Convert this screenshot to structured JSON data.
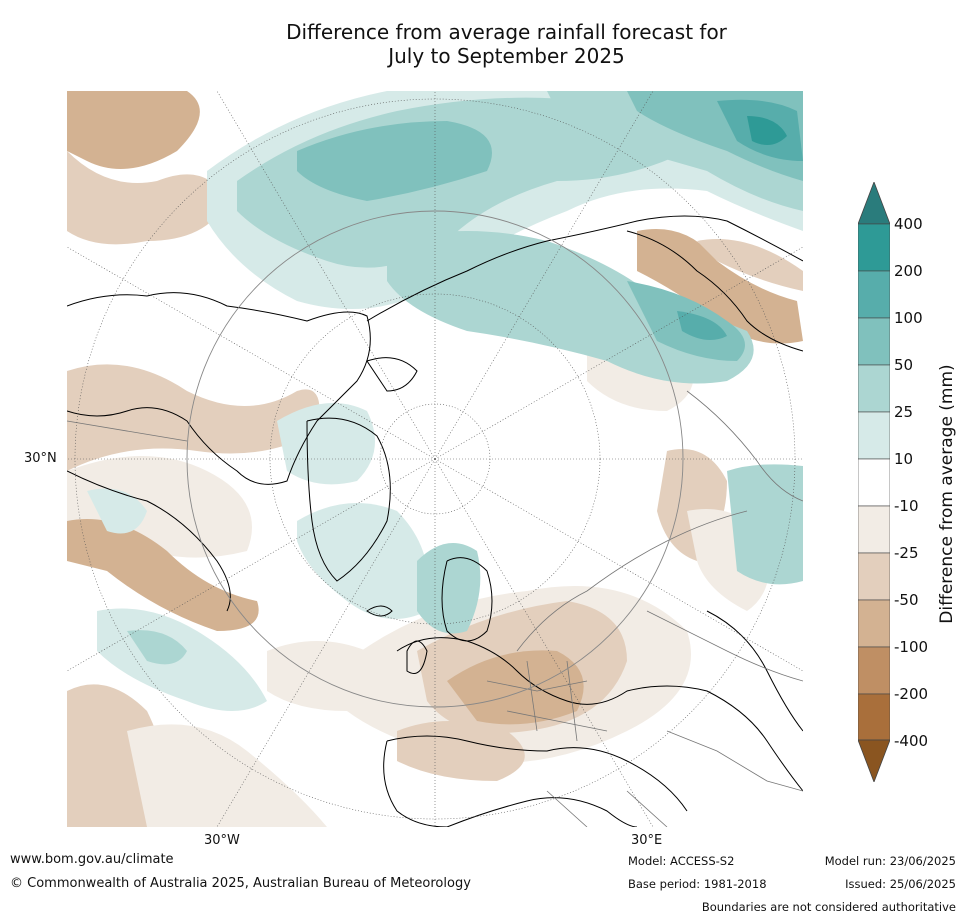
{
  "title_line1": "Difference from average rainfall forecast for",
  "title_line2": "July to September 2025",
  "map": {
    "lat_label": "30°N",
    "lon_labels": {
      "west": "30°W",
      "east": "30°E"
    }
  },
  "colorbar": {
    "label": "Difference from average (mm)",
    "ticks": [
      "400",
      "200",
      "100",
      "50",
      "25",
      "10",
      "-10",
      "-25",
      "-50",
      "-100",
      "-200",
      "-400"
    ],
    "colors": {
      "over": "#2a7c7c",
      "b200_400": "#2e9a96",
      "b100_200": "#57adab",
      "b50_100": "#80c1bd",
      "b25_50": "#acd6d2",
      "b10_25": "#d6eae8",
      "neutral": "#ffffff",
      "bm10_m25": "#f2ece5",
      "bm25_m50": "#e3cfbd",
      "bm50_m100": "#d3b292",
      "bm100_m200": "#bf8f64",
      "bm200_m400": "#a96f3b",
      "under": "#8a5520"
    }
  },
  "footer": {
    "url": "www.bom.gov.au/climate",
    "copyright": "© Commonwealth of Australia 2025, Australian Bureau of Meteorology",
    "model": "Model: ACCESS-S2",
    "base_period": "Base period: 1981-2018",
    "model_run": "Model run: 23/06/2025",
    "issued": "Issued: 25/06/2025",
    "disclaimer": "Boundaries are not considered authoritative"
  }
}
